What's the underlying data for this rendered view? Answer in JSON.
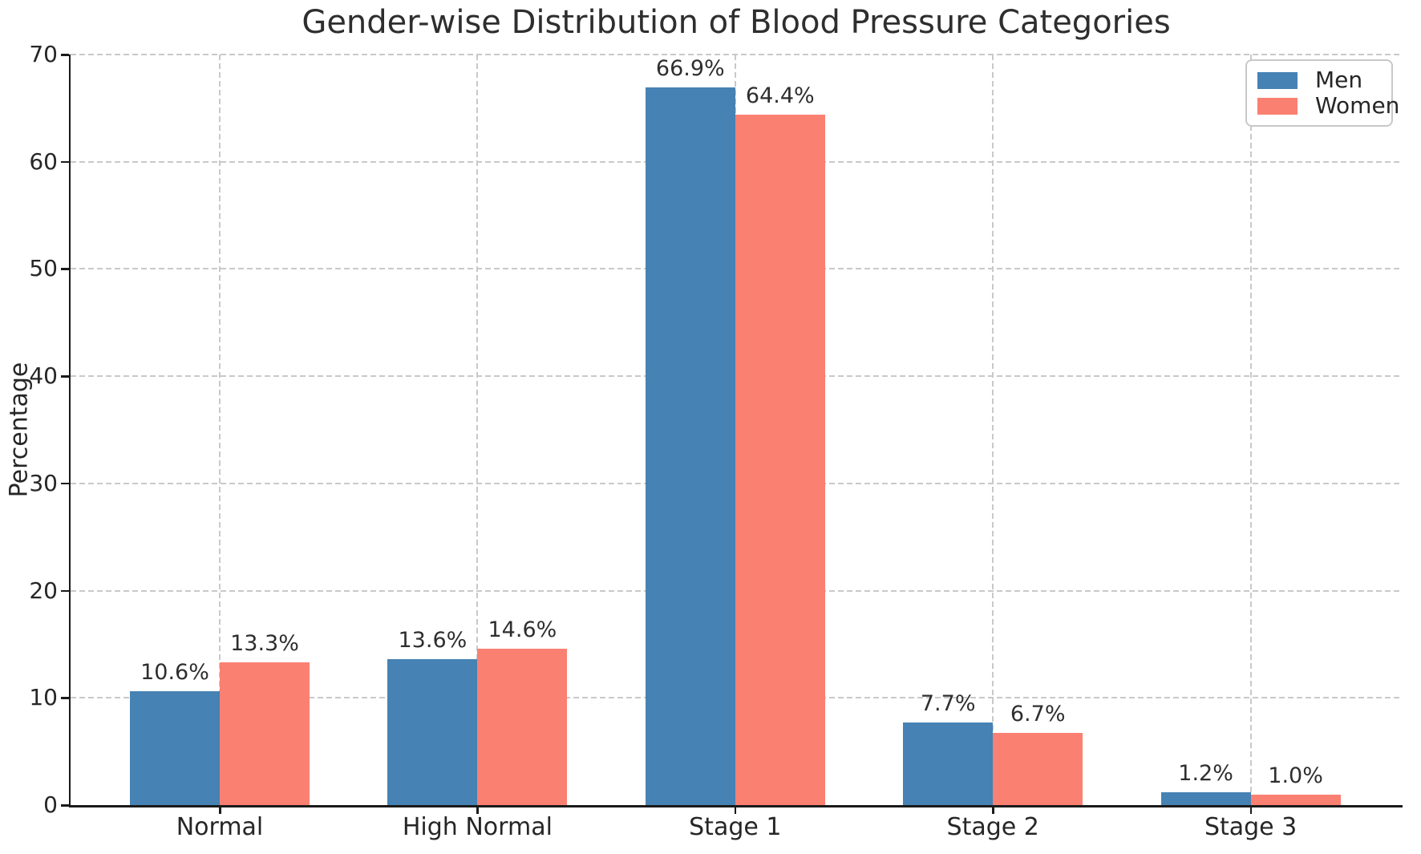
{
  "chart_data": {
    "type": "bar",
    "title": "Gender-wise Distribution of Blood Pressure Categories",
    "ylabel": "Percentage",
    "categories": [
      "Normal",
      "High Normal",
      "Stage 1",
      "Stage 2",
      "Stage 3"
    ],
    "series": [
      {
        "name": "Men",
        "color": "#4682B4",
        "values": [
          10.6,
          13.6,
          66.9,
          7.7,
          1.2
        ],
        "labels": [
          "10.6%",
          "13.6%",
          "66.9%",
          "7.7%",
          "1.2%"
        ]
      },
      {
        "name": "Women",
        "color": "#FA8072",
        "values": [
          13.3,
          14.6,
          64.4,
          6.7,
          1.0
        ],
        "labels": [
          "13.3%",
          "14.6%",
          "64.4%",
          "6.7%",
          "1.0%"
        ]
      }
    ],
    "ylim": [
      0,
      70
    ],
    "yticks": [
      "0",
      "10",
      "20",
      "30",
      "40",
      "50",
      "60",
      "70"
    ],
    "grid": "dashed",
    "legend_position": "upper right"
  },
  "styles": {
    "men_color": "#4682B4",
    "women_color": "#FA8072",
    "grid_color": "#c9c9c9",
    "axis_color": "#1a1a1a",
    "text_color": "#262626",
    "background": "#ffffff"
  }
}
